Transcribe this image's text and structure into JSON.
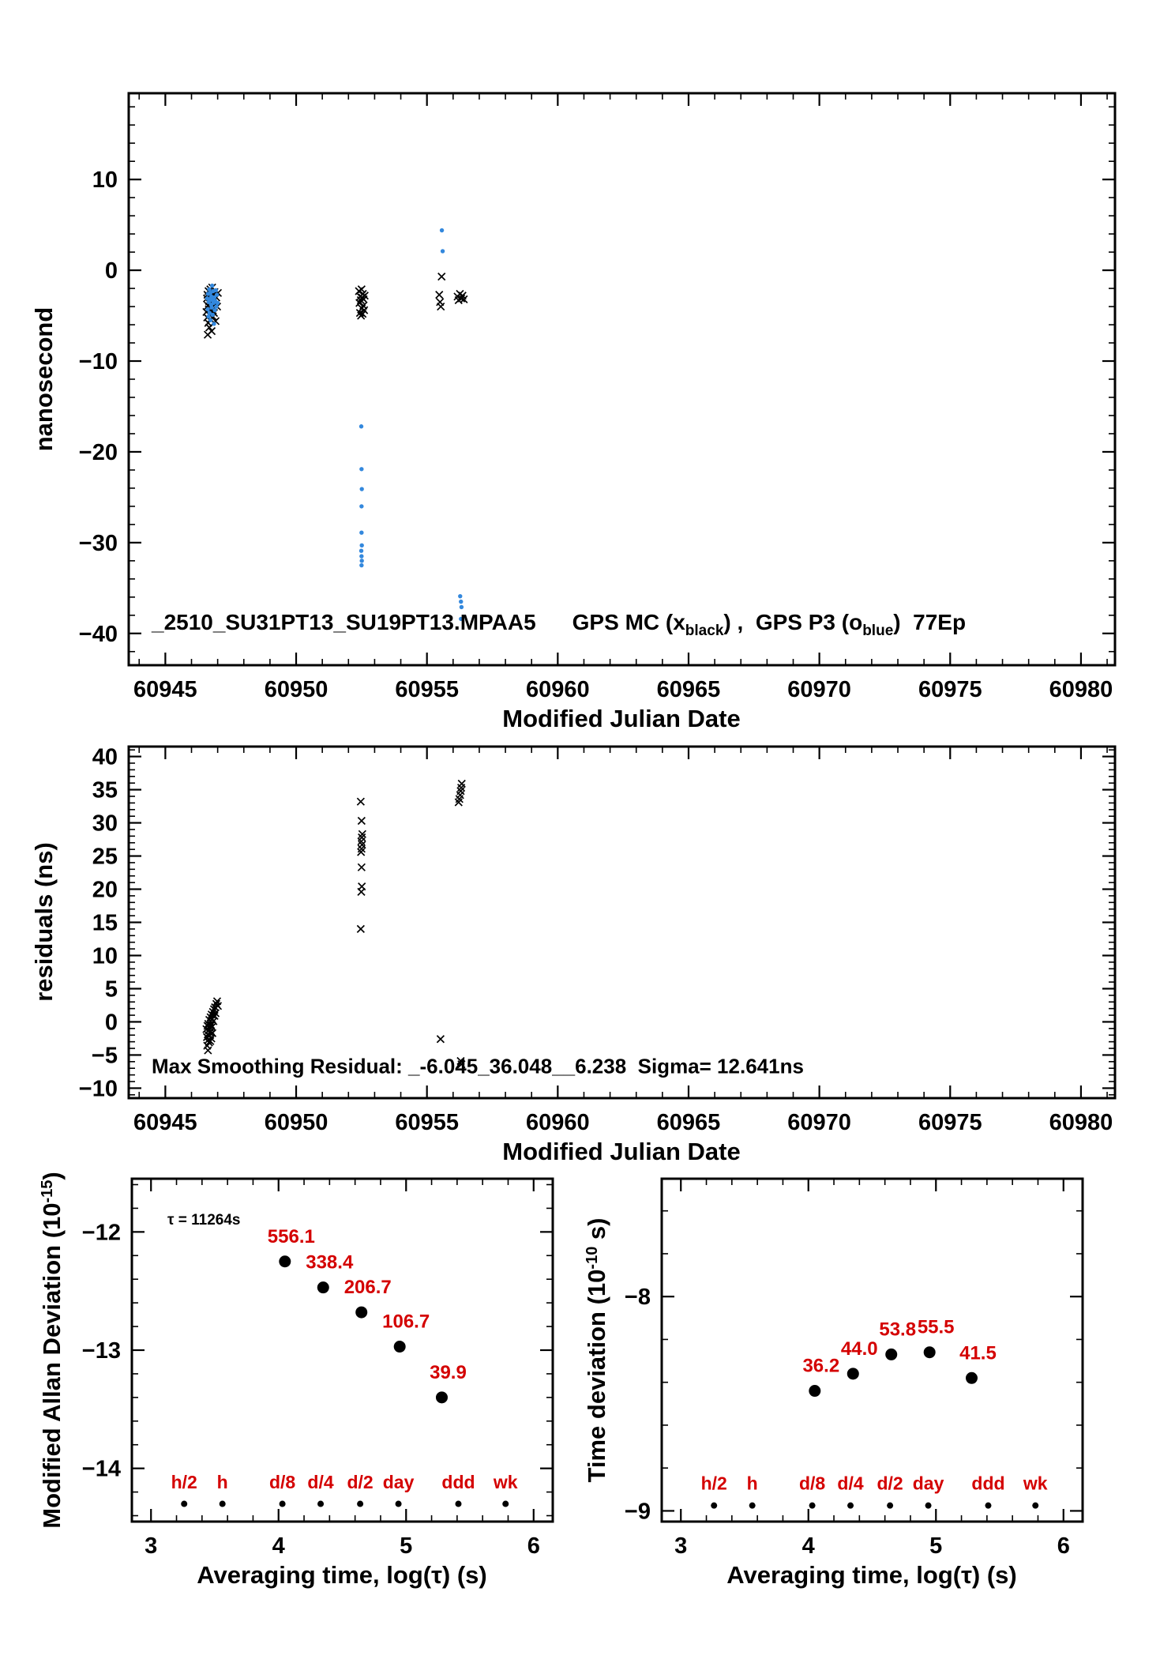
{
  "colors": {
    "black": "#000000",
    "blue": "#3388dd",
    "red": "#d40000"
  },
  "top_chart": {
    "ylabel": "nanosecond",
    "xlabel": "Modified Julian Date",
    "annotation": {
      "file": "_2510_SU31PT13_SU19PT13.MPAA5",
      "mc_prefix": "GPS MC (x",
      "mc_sub": "black",
      "mid": ") ,  GPS P3 (o",
      "p3_sub": "blue",
      "suffix": ")  77Ep"
    }
  },
  "residuals_chart": {
    "ylabel": "residuals (ns)",
    "xlabel": "Modified Julian Date",
    "annotation": "Max Smoothing Residual: _-6.045_36.048__6.238  Sigma= 12.641ns"
  },
  "madev_chart": {
    "ylabel_prefix": "Modified Allan Deviation (10",
    "ylabel_sup": "-15",
    "ylabel_suffix": ")",
    "xlabel": "Averaging time, log(τ) (s)",
    "tau_annotation": "τ = 11264s"
  },
  "tdev_chart": {
    "ylabel_prefix": "Time deviation (10",
    "ylabel_sup": "-10",
    "ylabel_suffix": " s)",
    "xlabel": "Averaging time, log(τ) (s)"
  },
  "chart_data": [
    {
      "id": "top",
      "type": "scatter",
      "title": "_2510_SU31PT13_SU19PT13.MPAA5 GPS MC (x black), GPS P3 (o blue) 77Ep",
      "xlabel": "Modified Julian Date",
      "ylabel": "nanosecond",
      "xlim": [
        60943.6,
        60981.3
      ],
      "ylim": [
        -43.5,
        19.5
      ],
      "xticks": [
        60945,
        60950,
        60955,
        60960,
        60965,
        60970,
        60975,
        60980
      ],
      "yticks": [
        10,
        0,
        -10,
        -20,
        -30,
        -40
      ],
      "xminor": 1,
      "yminor": 2,
      "series": [
        {
          "name": "GPS MC",
          "marker": "x",
          "color": "black",
          "points": [
            [
              60946.57,
              -4.6
            ],
            [
              60946.59,
              -3.1
            ],
            [
              60946.6,
              -5.2
            ],
            [
              60946.61,
              -2.7
            ],
            [
              60946.62,
              -7.1
            ],
            [
              60946.63,
              -3.9
            ],
            [
              60946.64,
              -5.8
            ],
            [
              60946.65,
              -2.3
            ],
            [
              60946.66,
              -4.3
            ],
            [
              60946.67,
              -3.4
            ],
            [
              60946.68,
              -6.3
            ],
            [
              60946.69,
              -2.9
            ],
            [
              60946.7,
              -4.9
            ],
            [
              60946.71,
              -3.7
            ],
            [
              60946.72,
              -2.1
            ],
            [
              60946.73,
              -5.4
            ],
            [
              60946.74,
              -3.2
            ],
            [
              60946.75,
              -4.1
            ],
            [
              60946.76,
              -2.6
            ],
            [
              60946.77,
              -6.7
            ],
            [
              60946.78,
              -3.6
            ],
            [
              60946.79,
              -1.9
            ],
            [
              60946.8,
              -4.4
            ],
            [
              60946.81,
              -2.8
            ],
            [
              60946.82,
              -5.1
            ],
            [
              60946.84,
              -3.3
            ],
            [
              60946.86,
              -4.7
            ],
            [
              60946.88,
              -2.4
            ],
            [
              60946.9,
              -3.8
            ],
            [
              60946.92,
              -5.6
            ],
            [
              60946.95,
              -3.0
            ],
            [
              60946.98,
              -4.0
            ],
            [
              60947.01,
              -2.5
            ],
            [
              60952.4,
              -2.3
            ],
            [
              60952.42,
              -3.6
            ],
            [
              60952.44,
              -4.7
            ],
            [
              60952.45,
              -2.9
            ],
            [
              60952.47,
              -3.3
            ],
            [
              60952.48,
              -5.0
            ],
            [
              60952.5,
              -2.1
            ],
            [
              60952.51,
              -4.2
            ],
            [
              60952.52,
              -3.0
            ],
            [
              60952.54,
              -4.8
            ],
            [
              60952.55,
              -2.6
            ],
            [
              60952.57,
              -3.9
            ],
            [
              60952.58,
              -3.2
            ],
            [
              60952.6,
              -4.4
            ],
            [
              60952.62,
              -2.8
            ],
            [
              60955.47,
              -2.7
            ],
            [
              60955.5,
              -3.5
            ],
            [
              60955.53,
              -4.0
            ],
            [
              60955.56,
              -0.7
            ],
            [
              60956.17,
              -2.9
            ],
            [
              60956.21,
              -3.3
            ],
            [
              60956.26,
              -2.6
            ],
            [
              60956.31,
              -3.1
            ],
            [
              60956.36,
              -2.8
            ],
            [
              60956.41,
              -3.2
            ]
          ]
        },
        {
          "name": "GPS P3",
          "marker": "o-small",
          "color": "blue",
          "points": [
            [
              60946.6,
              -3.1
            ],
            [
              60946.62,
              -4.3
            ],
            [
              60946.63,
              -2.6
            ],
            [
              60946.65,
              -5.1
            ],
            [
              60946.66,
              -3.5
            ],
            [
              60946.68,
              -2.1
            ],
            [
              60946.69,
              -4.7
            ],
            [
              60946.7,
              -3.2
            ],
            [
              60946.72,
              -2.5
            ],
            [
              60946.73,
              -5.5
            ],
            [
              60946.75,
              -3.8
            ],
            [
              60946.76,
              -2.9
            ],
            [
              60946.77,
              -4.1
            ],
            [
              60946.79,
              -1.7
            ],
            [
              60946.8,
              -3.3
            ],
            [
              60946.81,
              -4.9
            ],
            [
              60946.83,
              -2.3
            ],
            [
              60946.84,
              -3.6
            ],
            [
              60946.86,
              -5.9
            ],
            [
              60946.87,
              -3.0
            ],
            [
              60946.89,
              -4.4
            ],
            [
              60946.91,
              -3.4
            ],
            [
              60946.93,
              -2.2
            ],
            [
              60946.95,
              -4.0
            ],
            [
              60946.97,
              -2.7
            ],
            [
              60947.0,
              -3.6
            ],
            [
              60952.49,
              -17.2
            ],
            [
              60952.5,
              -21.9
            ],
            [
              60952.51,
              -24.1
            ],
            [
              60952.5,
              -26.0
            ],
            [
              60952.5,
              -28.9
            ],
            [
              60952.51,
              -30.3
            ],
            [
              60952.49,
              -30.9
            ],
            [
              60952.5,
              -31.5
            ],
            [
              60952.51,
              -32.0
            ],
            [
              60952.5,
              -32.5
            ],
            [
              60955.57,
              4.4
            ],
            [
              60955.6,
              2.1
            ],
            [
              60956.27,
              -35.9
            ],
            [
              60956.3,
              -36.5
            ],
            [
              60956.32,
              -37.1
            ],
            [
              60956.3,
              -38.4
            ]
          ]
        }
      ]
    },
    {
      "id": "residuals",
      "type": "scatter",
      "title": "Smoothing residuals",
      "xlabel": "Modified Julian Date",
      "ylabel": "residuals (ns)",
      "xlim": [
        60943.6,
        60981.3
      ],
      "ylim": [
        -11.5,
        41.5
      ],
      "xticks": [
        60945,
        60950,
        60955,
        60960,
        60965,
        60970,
        60975,
        60980
      ],
      "yticks": [
        40,
        35,
        30,
        25,
        20,
        15,
        10,
        5,
        0,
        -5,
        -10
      ],
      "xminor": 1,
      "yminor": 1,
      "series": [
        {
          "name": "residuals",
          "marker": "x",
          "color": "black",
          "points": [
            [
              60946.57,
              -1.1
            ],
            [
              60946.59,
              -2.3
            ],
            [
              60946.6,
              -3.6
            ],
            [
              60946.61,
              -0.6
            ],
            [
              60946.62,
              -1.9
            ],
            [
              60946.63,
              -4.3
            ],
            [
              60946.64,
              -0.3
            ],
            [
              60946.65,
              -2.7
            ],
            [
              60946.66,
              -1.3
            ],
            [
              60946.67,
              -3.1
            ],
            [
              60946.68,
              0.3
            ],
            [
              60946.69,
              -2.1
            ],
            [
              60946.7,
              -1.6
            ],
            [
              60946.71,
              -0.9
            ],
            [
              60946.72,
              -2.9
            ],
            [
              60946.73,
              0.7
            ],
            [
              60946.74,
              -1.4
            ],
            [
              60946.75,
              -0.5
            ],
            [
              60946.76,
              -2.5
            ],
            [
              60946.77,
              1.1
            ],
            [
              60946.78,
              -0.8
            ],
            [
              60946.79,
              0.4
            ],
            [
              60946.8,
              -1.7
            ],
            [
              60946.82,
              1.5
            ],
            [
              60946.84,
              0.1
            ],
            [
              60946.86,
              1.9
            ],
            [
              60946.88,
              0.9
            ],
            [
              60946.9,
              2.2
            ],
            [
              60946.92,
              1.3
            ],
            [
              60946.95,
              2.7
            ],
            [
              60946.98,
              3.1
            ],
            [
              60947.01,
              2.4
            ],
            [
              60952.47,
              14.0
            ],
            [
              60952.49,
              19.6
            ],
            [
              60952.51,
              20.4
            ],
            [
              60952.5,
              23.3
            ],
            [
              60952.48,
              25.6
            ],
            [
              60952.5,
              26.1
            ],
            [
              60952.52,
              26.7
            ],
            [
              60952.49,
              27.2
            ],
            [
              60952.51,
              27.8
            ],
            [
              60952.53,
              28.3
            ],
            [
              60952.5,
              30.3
            ],
            [
              60952.47,
              33.2
            ],
            [
              60956.21,
              33.1
            ],
            [
              60956.24,
              33.6
            ],
            [
              60956.27,
              34.2
            ],
            [
              60956.29,
              34.8
            ],
            [
              60956.31,
              35.3
            ],
            [
              60956.33,
              35.9
            ],
            [
              60955.52,
              -2.6
            ],
            [
              60956.29,
              -5.9
            ],
            [
              60956.32,
              -6.4
            ]
          ]
        }
      ]
    },
    {
      "id": "madev",
      "type": "scatter",
      "title": "Modified Allan Deviation",
      "xlabel": "Averaging time, log(τ) (s)",
      "ylabel": "Modified Allan Deviation (10^-15)",
      "xlim": [
        2.85,
        6.15
      ],
      "ylim": [
        -14.45,
        -11.55
      ],
      "xticks": [
        3,
        4,
        5,
        6
      ],
      "yticks": [
        -12,
        -13,
        -14
      ],
      "xminor": 0.2,
      "yminor": 0.2,
      "series": [
        {
          "name": "MDEV",
          "marker": "o-large",
          "color": "black",
          "points": [
            [
              4.05,
              -12.25
            ],
            [
              4.35,
              -12.47
            ],
            [
              4.65,
              -12.68
            ],
            [
              4.95,
              -12.97
            ],
            [
              5.28,
              -13.4
            ]
          ],
          "labels": [
            "556.1",
            "338.4",
            "206.7",
            "106.7",
            "39.9"
          ]
        }
      ],
      "tau_markers": {
        "labels": [
          "h/2",
          "h",
          "d/8",
          "d/4",
          "d/2",
          "day",
          "ddd",
          "wk"
        ],
        "x": [
          3.26,
          3.56,
          4.03,
          4.33,
          4.64,
          4.94,
          5.41,
          5.78
        ],
        "dot_y": -14.3,
        "label_y": -14.17
      },
      "tau_annotation": "τ = 11264s"
    },
    {
      "id": "tdev",
      "type": "scatter",
      "title": "Time deviation",
      "xlabel": "Averaging time, log(τ) (s)",
      "ylabel": "Time deviation (10^-10 s)",
      "xlim": [
        2.85,
        6.15
      ],
      "ylim": [
        -9.05,
        -7.45
      ],
      "xticks": [
        3,
        4,
        5,
        6
      ],
      "yticks": [
        -8,
        -9
      ],
      "xminor": 0.2,
      "yminor": 0.2,
      "series": [
        {
          "name": "TDEV",
          "marker": "o-large",
          "color": "black",
          "points": [
            [
              4.05,
              -8.44
            ],
            [
              4.35,
              -8.36
            ],
            [
              4.65,
              -8.27
            ],
            [
              4.95,
              -8.26
            ],
            [
              5.28,
              -8.38
            ]
          ],
          "labels": [
            "36.2",
            "44.0",
            "53.8",
            "55.5",
            "41.5"
          ]
        }
      ],
      "tau_markers": {
        "labels": [
          "h/2",
          "h",
          "d/8",
          "d/4",
          "d/2",
          "day",
          "ddd",
          "wk"
        ],
        "x": [
          3.26,
          3.56,
          4.03,
          4.33,
          4.64,
          4.94,
          5.41,
          5.78
        ],
        "dot_y": -8.975,
        "label_y": -8.9
      }
    }
  ]
}
